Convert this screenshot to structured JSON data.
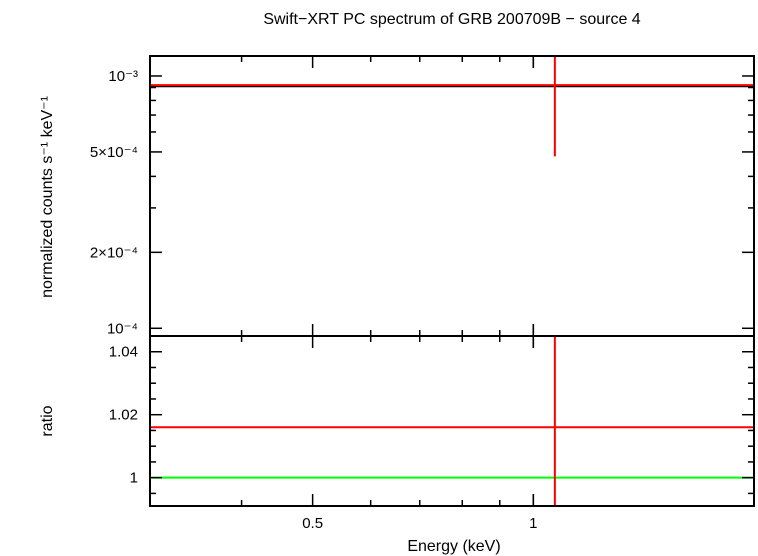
{
  "chart_data": [
    {
      "type": "scatter",
      "title": "Swift−XRT PC spectrum of GRB 200709B − source 4",
      "xlabel": "",
      "ylabel": "normalized counts s⁻¹ keV⁻¹",
      "xscale": "log",
      "yscale": "log",
      "xlim": [
        0.3,
        2.0
      ],
      "ylim": [
        9.32e-05,
        0.0012
      ],
      "ytick_labels": [
        {
          "v": 0.001,
          "label": "10⁻³"
        },
        {
          "v": 0.0005,
          "label": "5×10⁻⁴"
        },
        {
          "v": 0.0002,
          "label": "2×10⁻⁴"
        },
        {
          "v": 0.0001,
          "label": "10⁻⁴"
        }
      ],
      "series": [
        {
          "color": "#ff0000",
          "points": [
            {
              "x": 1.07,
              "xerr": [
                0.3,
                2.0
              ],
              "y": 0.00092,
              "yerr": [
                0.00048,
                0.0012
              ]
            }
          ]
        }
      ],
      "model_line": {
        "color": "#000000",
        "y": 0.00091,
        "x": [
          0.3,
          2.0
        ]
      }
    },
    {
      "type": "scatter",
      "xlabel": "Energy (keV)",
      "ylabel": "ratio",
      "xscale": "log",
      "xlim": [
        0.3,
        2.0
      ],
      "ylim": [
        0.991,
        1.045
      ],
      "ytick_labels": [
        {
          "v": 1.04,
          "label": "1.04"
        },
        {
          "v": 1.02,
          "label": "1.02"
        },
        {
          "v": 1.0,
          "label": "1"
        }
      ],
      "xtick_labels": [
        {
          "v": 0.5,
          "label": "0.5"
        },
        {
          "v": 1.0,
          "label": "1"
        }
      ],
      "series": [
        {
          "color": "#ff0000",
          "points": [
            {
              "x": 1.07,
              "xerr": [
                0.3,
                2.0
              ],
              "y": 1.016,
              "yerr": [
                0.991,
                1.045
              ]
            }
          ]
        }
      ],
      "reference_line": {
        "color": "#00ff00",
        "y": 1.0
      }
    }
  ]
}
